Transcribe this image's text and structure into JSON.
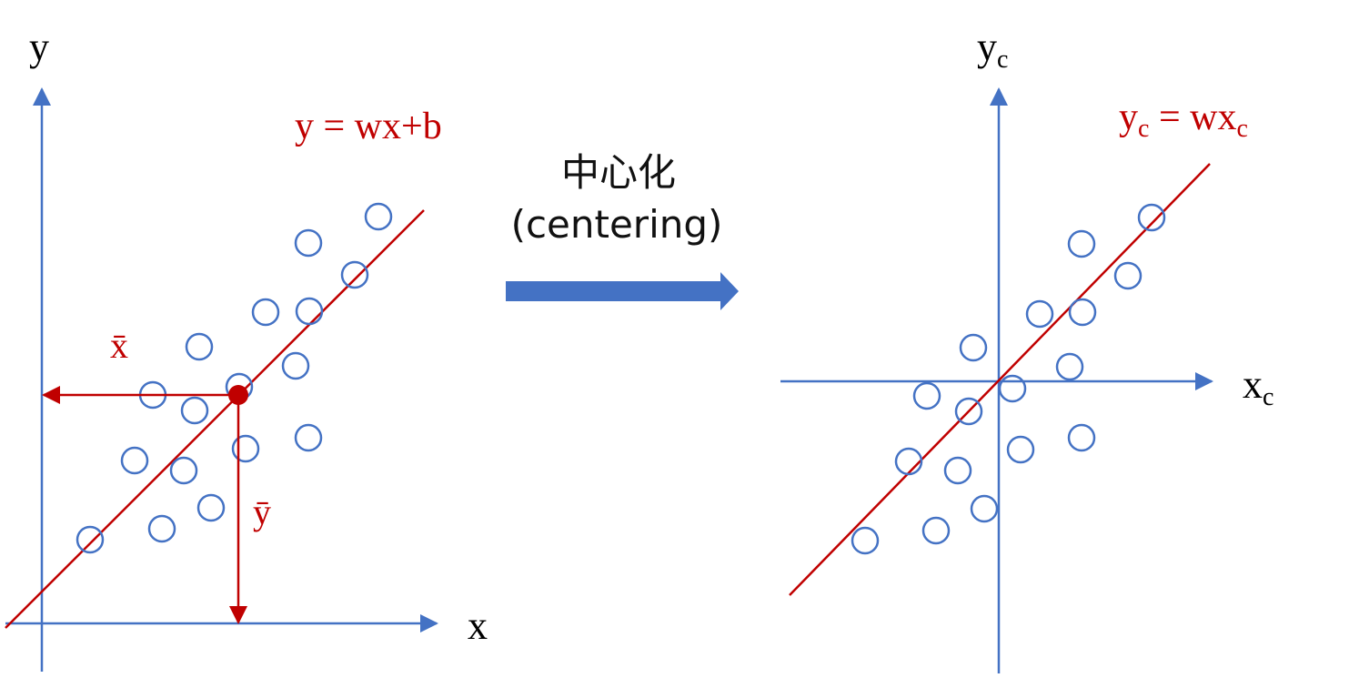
{
  "colors": {
    "axis": "#4472C4",
    "line": "#C00000",
    "points": "#4472C4",
    "text": "#000000",
    "arrow": "#4472C4"
  },
  "left_panel": {
    "y_axis_label": "y",
    "x_axis_label": "x",
    "equation": "y = wx+b",
    "x_mean_label": "x̄",
    "y_mean_label": "ȳ"
  },
  "right_panel": {
    "y_axis_label": "y",
    "y_axis_sub": "c",
    "x_axis_label": "x",
    "x_axis_sub": "c",
    "equation_lhs": "y",
    "equation_lhs_sub": "c",
    "equation_rhs": " = wx",
    "equation_rhs_sub": "c"
  },
  "transform": {
    "label_ja": "中心化",
    "label_en": "(centering)"
  }
}
